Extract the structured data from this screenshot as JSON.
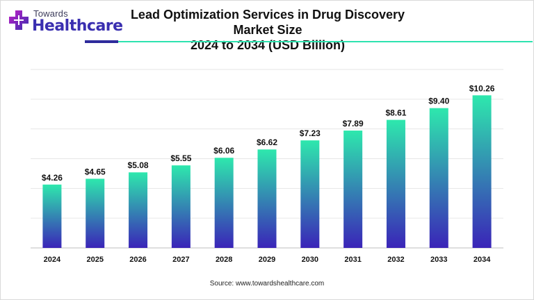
{
  "header": {
    "logo_top": "Towards",
    "logo_main": "Healthcare",
    "title_line1": "Lead Optimization Services in Drug Discovery Market Size",
    "title_line2": "2024 to 2034 (USD Billion)"
  },
  "footer": {
    "source": "Source: www.towardshealthcare.com"
  },
  "colors": {
    "bar_top": "#2ee8ad",
    "bar_bottom": "#3a24b8",
    "grid": "#e6e6e6",
    "accent_dark": "#2e2b9c",
    "accent_teal": "#2ee3b0"
  },
  "chart_data": {
    "type": "bar",
    "categories": [
      "2024",
      "2025",
      "2026",
      "2027",
      "2028",
      "2029",
      "2030",
      "2031",
      "2032",
      "2033",
      "2034"
    ],
    "values": [
      4.26,
      4.65,
      5.08,
      5.55,
      6.06,
      6.62,
      7.23,
      7.89,
      8.61,
      9.4,
      10.26
    ],
    "labels": [
      "$4.26",
      "$4.65",
      "$5.08",
      "$5.55",
      "$6.06",
      "$6.62",
      "$7.23",
      "$7.89",
      "$8.61",
      "$9.40",
      "$10.26"
    ],
    "title": "Lead Optimization Services in Drug Discovery Market Size 2024 to 2034 (USD Billion)",
    "xlabel": "",
    "ylabel": "",
    "ylim": [
      0,
      12
    ],
    "grid": true,
    "y_ticks_shown": false
  }
}
